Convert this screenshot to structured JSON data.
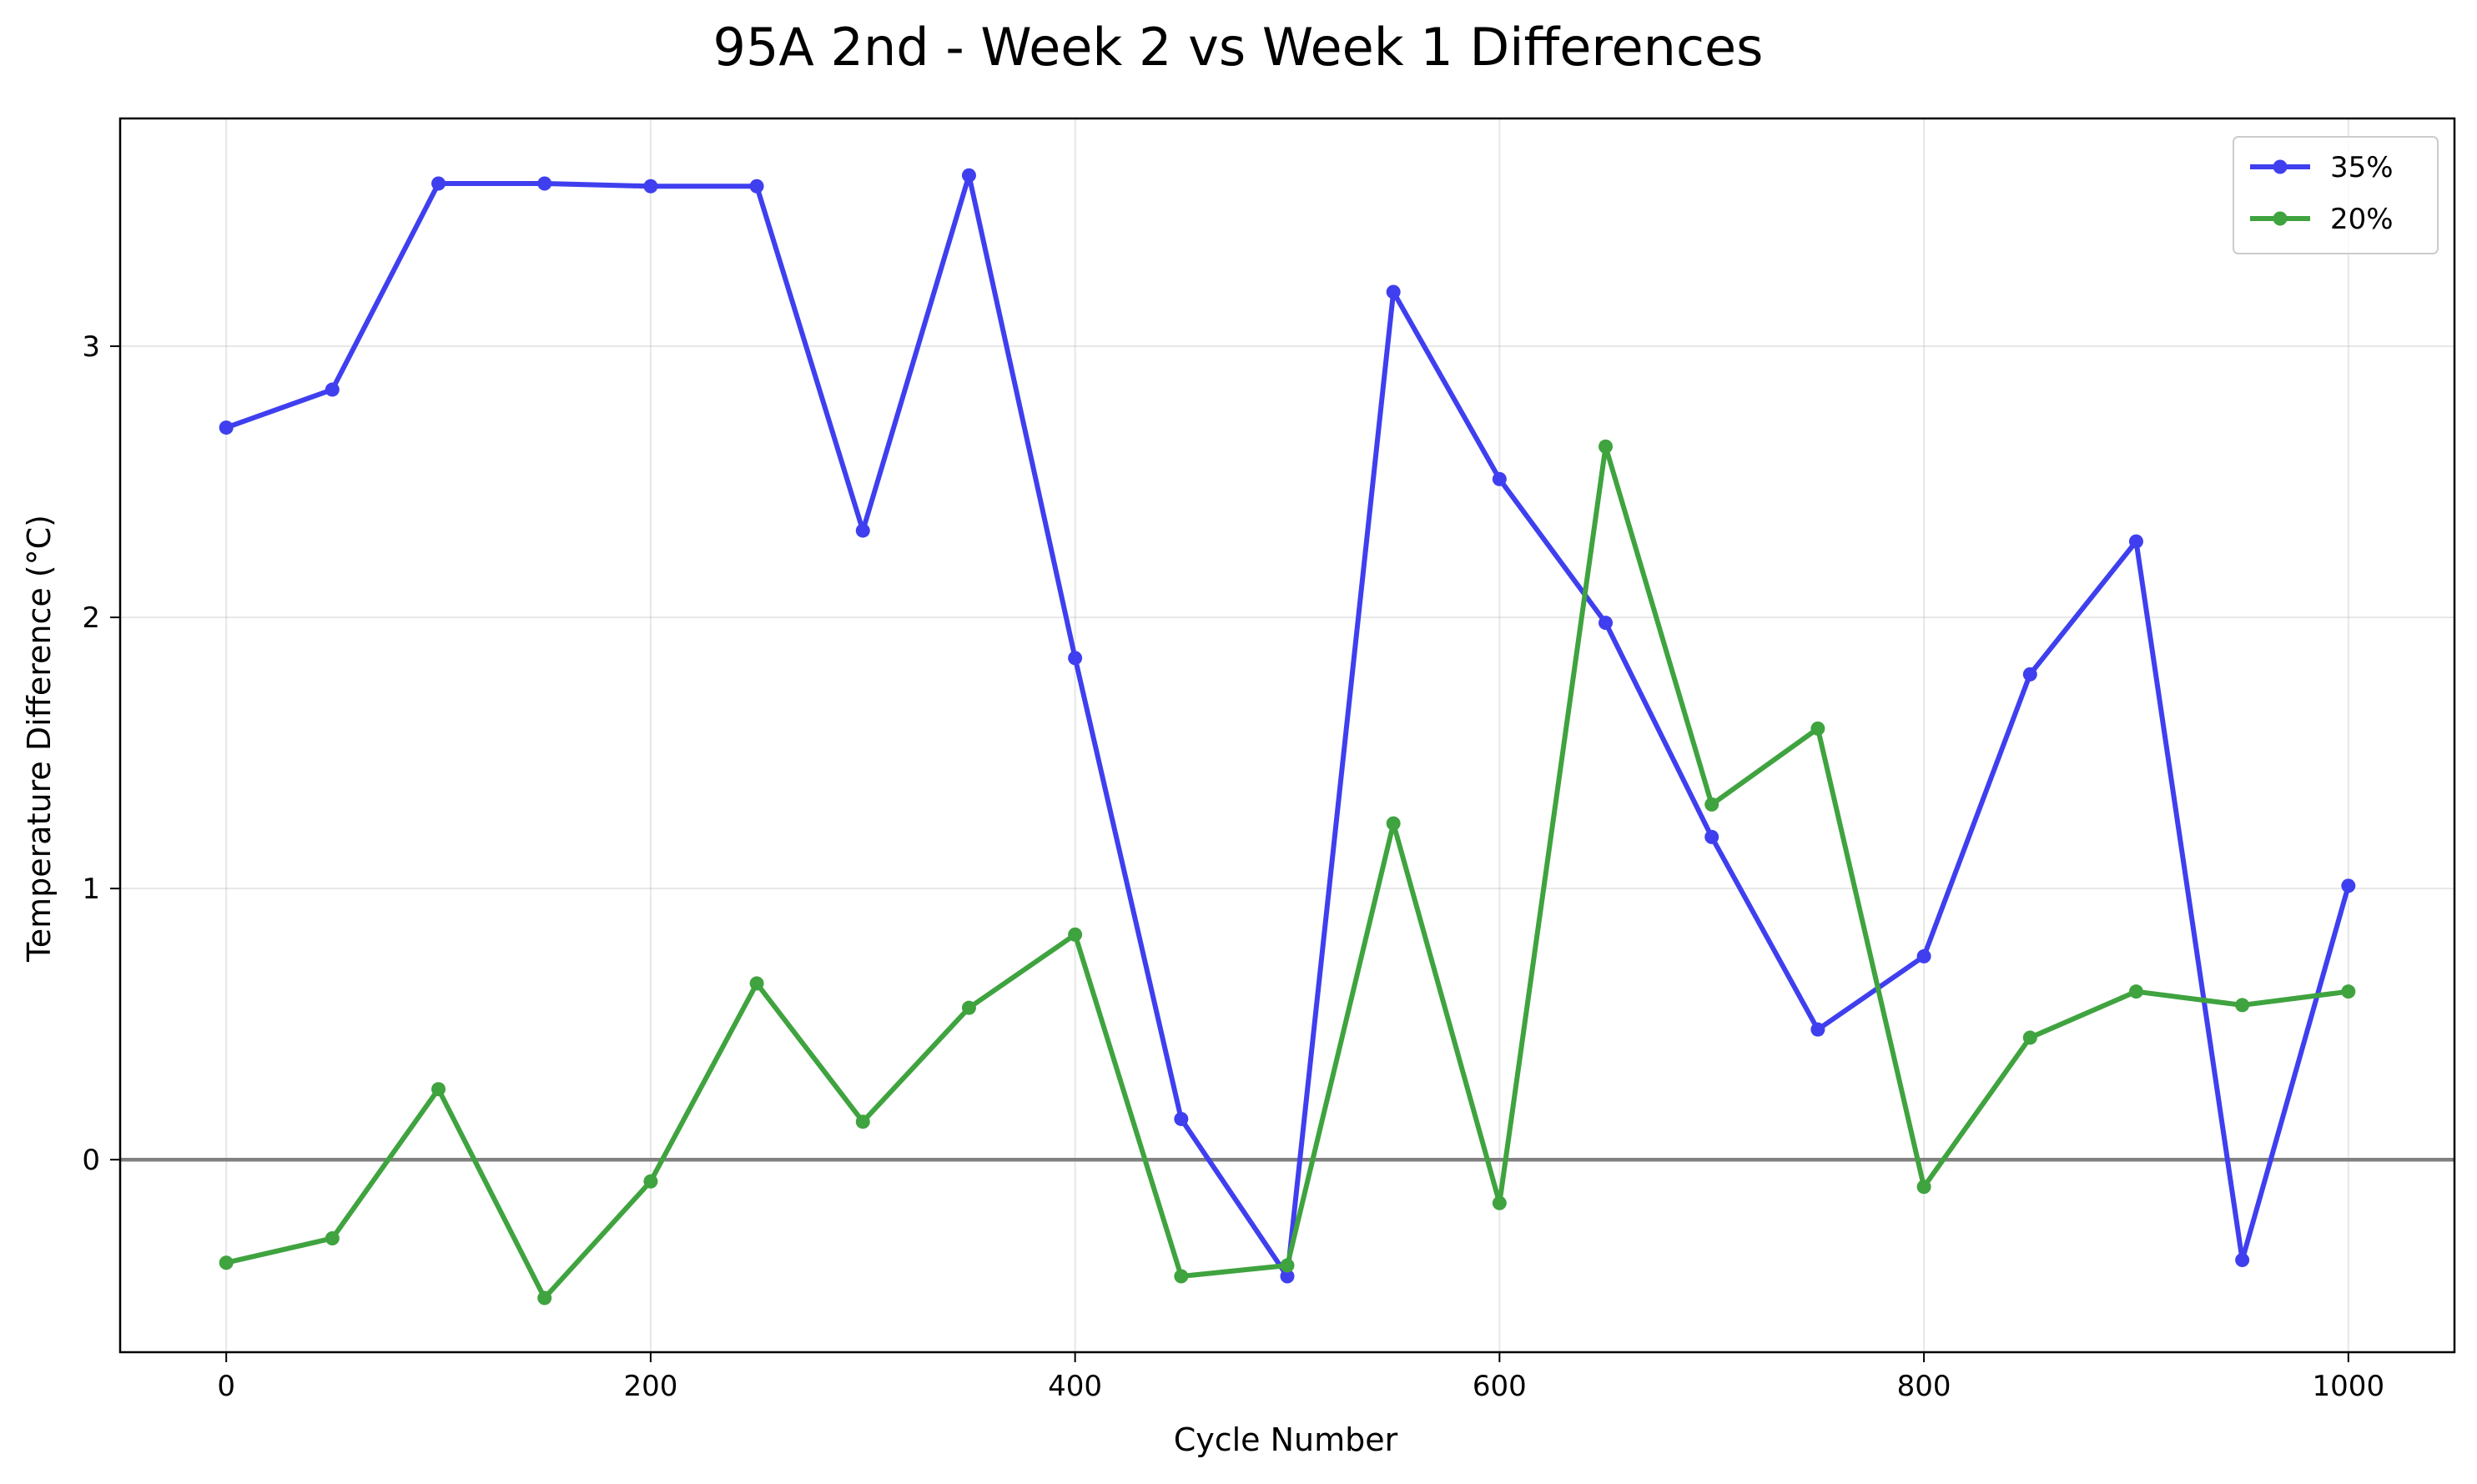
{
  "chart_data": {
    "type": "line",
    "title": "95A 2nd - Week 2 vs Week 1 Differences",
    "xlabel": "Cycle Number",
    "ylabel": "Temperature Difference (°C)",
    "xlim": [
      -50,
      1050
    ],
    "ylim": [
      -0.71,
      3.84
    ],
    "x_ticks": [
      0,
      200,
      400,
      600,
      800,
      1000
    ],
    "y_ticks": [
      0,
      1,
      2,
      3
    ],
    "grid": true,
    "reference_line": {
      "y": 0,
      "color": "#808080"
    },
    "legend_position": "top-right",
    "x": [
      0,
      50,
      100,
      150,
      200,
      250,
      300,
      350,
      400,
      450,
      500,
      550,
      600,
      650,
      700,
      750,
      800,
      850,
      900,
      950,
      1000
    ],
    "series": [
      {
        "name": "35%",
        "color": "#3f3fef",
        "values": [
          2.7,
          2.84,
          3.6,
          3.6,
          3.59,
          3.59,
          2.32,
          3.63,
          1.85,
          0.15,
          -0.43,
          3.2,
          2.51,
          1.98,
          1.19,
          0.48,
          0.75,
          1.79,
          2.28,
          -0.37,
          1.01
        ]
      },
      {
        "name": "20%",
        "color": "#3fa33f",
        "values": [
          -0.38,
          -0.29,
          0.26,
          -0.51,
          -0.08,
          0.65,
          0.14,
          0.56,
          0.83,
          -0.43,
          -0.39,
          1.24,
          -0.16,
          2.63,
          1.31,
          1.59,
          -0.1,
          0.45,
          0.62,
          0.57,
          0.62
        ]
      }
    ]
  }
}
